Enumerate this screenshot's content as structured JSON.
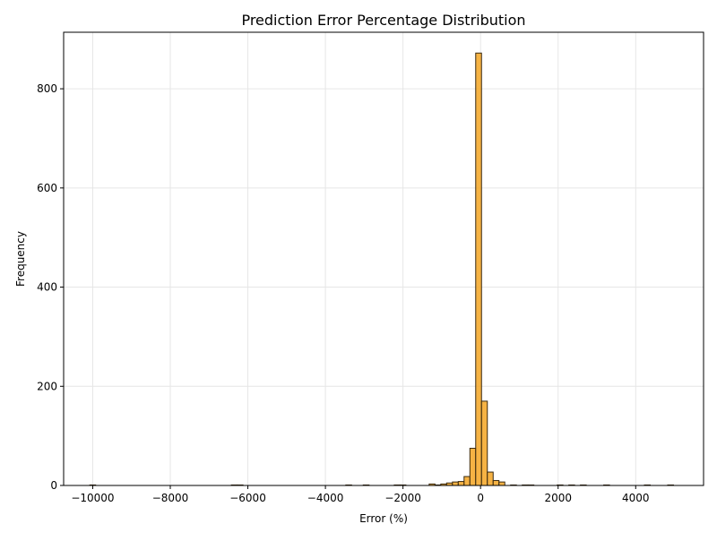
{
  "chart_data": {
    "type": "bar",
    "title": "Prediction Error Percentage Distribution",
    "xlabel": "Error (%)",
    "ylabel": "Frequency",
    "xlim": [
      -10750,
      5750
    ],
    "ylim": [
      0,
      914
    ],
    "xticks": [
      -10000,
      -8000,
      -6000,
      -4000,
      -2000,
      0,
      2000,
      4000
    ],
    "xtick_labels": [
      "−10000",
      "−8000",
      "−6000",
      "−4000",
      "−2000",
      "0",
      "2000",
      "4000"
    ],
    "yticks": [
      0,
      200,
      400,
      600,
      800
    ],
    "ytick_labels": [
      "0",
      "200",
      "400",
      "600",
      "800"
    ],
    "grid": true,
    "bar_color": "#f5a623",
    "bar_edge_color": "#3a2a10",
    "bin_width": 150,
    "bins": [
      {
        "x": -10000,
        "value": 1
      },
      {
        "x": -6350,
        "value": 1
      },
      {
        "x": -6200,
        "value": 1
      },
      {
        "x": -3400,
        "value": 1
      },
      {
        "x": -2950,
        "value": 1
      },
      {
        "x": -2150,
        "value": 1
      },
      {
        "x": -2000,
        "value": 1
      },
      {
        "x": -1250,
        "value": 3
      },
      {
        "x": -1100,
        "value": 1
      },
      {
        "x": -950,
        "value": 3
      },
      {
        "x": -800,
        "value": 5
      },
      {
        "x": -650,
        "value": 7
      },
      {
        "x": -500,
        "value": 8
      },
      {
        "x": -350,
        "value": 18
      },
      {
        "x": -200,
        "value": 75
      },
      {
        "x": -50,
        "value": 872
      },
      {
        "x": 100,
        "value": 170
      },
      {
        "x": 250,
        "value": 27
      },
      {
        "x": 400,
        "value": 10
      },
      {
        "x": 550,
        "value": 7
      },
      {
        "x": 850,
        "value": 1
      },
      {
        "x": 1150,
        "value": 1
      },
      {
        "x": 1300,
        "value": 1
      },
      {
        "x": 2050,
        "value": 1
      },
      {
        "x": 2350,
        "value": 1
      },
      {
        "x": 2650,
        "value": 1
      },
      {
        "x": 3250,
        "value": 1
      },
      {
        "x": 4300,
        "value": 1
      },
      {
        "x": 4900,
        "value": 1
      }
    ]
  }
}
